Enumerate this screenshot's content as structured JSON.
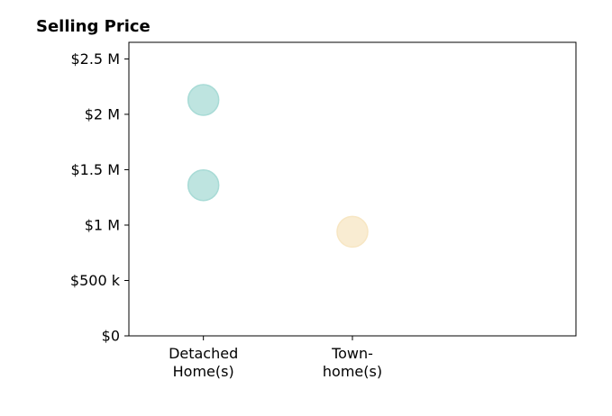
{
  "chart_data": {
    "type": "scatter",
    "title": "Selling Price",
    "xlabel": "",
    "ylabel": "",
    "categories": [
      [
        "Detached",
        "Home(s)"
      ],
      [
        "Town-",
        "home(s)"
      ]
    ],
    "xlim": [
      -0.5,
      2.5
    ],
    "ylim": [
      0,
      2650000
    ],
    "y_ticks": [
      {
        "value": 0,
        "label": "$0"
      },
      {
        "value": 500000,
        "label": "$500 k"
      },
      {
        "value": 1000000,
        "label": "$1 M"
      },
      {
        "value": 1500000,
        "label": "$1.5 M"
      },
      {
        "value": 2000000,
        "label": "$2 M"
      },
      {
        "value": 2500000,
        "label": "$2.5 M"
      }
    ],
    "grid": false,
    "legend": "none",
    "points": [
      {
        "category": 0,
        "y": 2130000,
        "color": "#a8dbd6"
      },
      {
        "category": 0,
        "y": 1360000,
        "color": "#a8dbd6"
      },
      {
        "category": 1,
        "y": 940000,
        "color": "#f7e6c3"
      }
    ]
  }
}
